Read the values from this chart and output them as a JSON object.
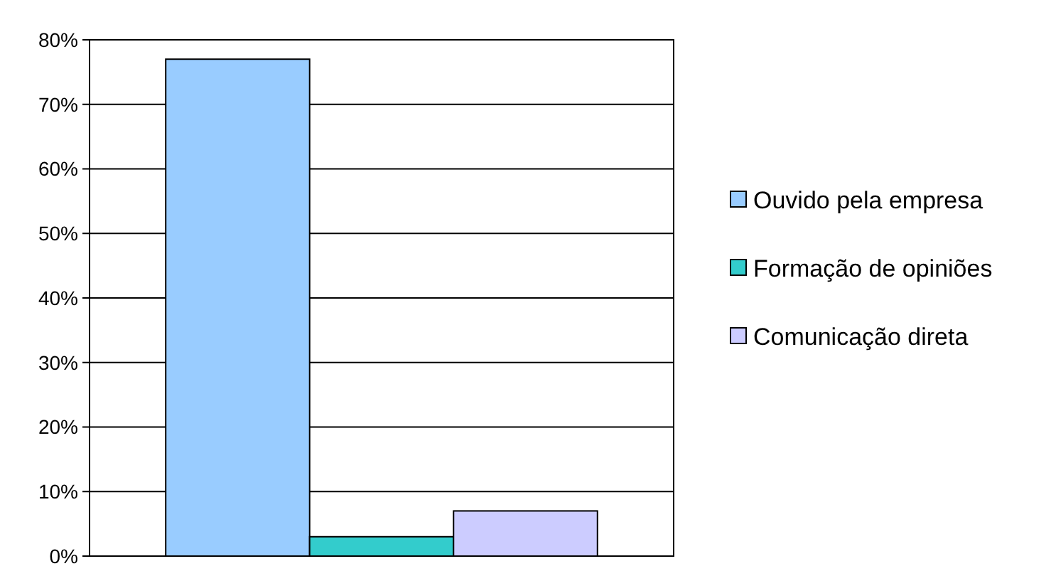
{
  "chart_data": {
    "type": "bar",
    "categories": [
      null
    ],
    "series": [
      {
        "name": "Ouvido pela empresa",
        "color": "#99ccff",
        "values": [
          77
        ]
      },
      {
        "name": "Formação de opiniões",
        "color": "#33cccc",
        "values": [
          3
        ]
      },
      {
        "name": "Comunicação direta",
        "color": "#ccccff",
        "values": [
          7
        ]
      }
    ],
    "ylim": [
      0,
      80
    ],
    "yticks": [
      {
        "value": 0,
        "label": "0%"
      },
      {
        "value": 10,
        "label": "10%"
      },
      {
        "value": 20,
        "label": "20%"
      },
      {
        "value": 30,
        "label": "30%"
      },
      {
        "value": 40,
        "label": "40%"
      },
      {
        "value": 50,
        "label": "50%"
      },
      {
        "value": 60,
        "label": "60%"
      },
      {
        "value": 70,
        "label": "70%"
      },
      {
        "value": 80,
        "label": "80%"
      }
    ],
    "grid": "y",
    "legend": "right"
  }
}
